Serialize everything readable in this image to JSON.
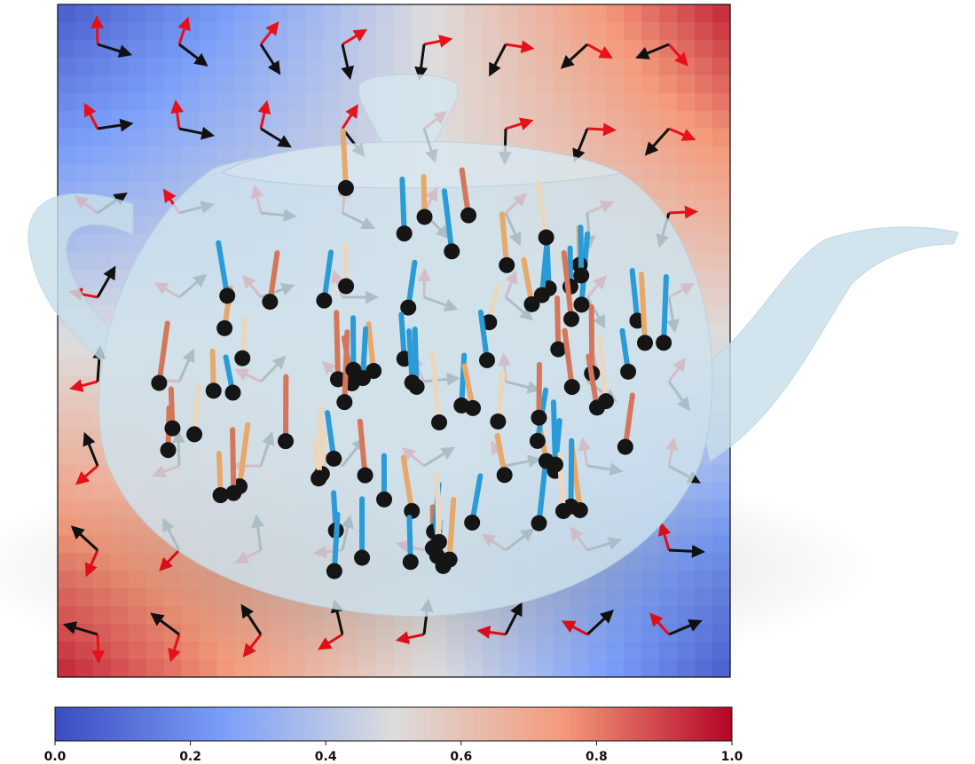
{
  "colorbar": {
    "lim": [
      0,
      1
    ],
    "ticks": [
      {
        "value": 0,
        "label": "0.0"
      },
      0.2,
      0.4,
      0.6,
      0.8,
      {
        "value": 1,
        "label": "1.0"
      }
    ]
  }
}
